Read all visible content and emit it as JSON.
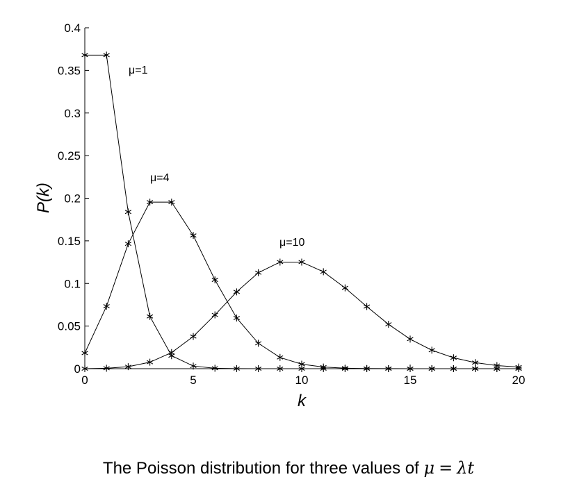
{
  "chart_data": {
    "type": "line",
    "xlabel": "k",
    "ylabel": "P(k)",
    "xlim": [
      0,
      20
    ],
    "ylim": [
      0,
      0.4
    ],
    "xticks": [
      0,
      5,
      10,
      15,
      20
    ],
    "xtick_labels": [
      "0",
      "5",
      "10",
      "15",
      "20"
    ],
    "yticks": [
      0,
      0.05,
      0.1,
      0.15,
      0.2,
      0.25,
      0.3,
      0.35,
      0.4
    ],
    "ytick_labels": [
      "0",
      "0.05",
      "0.1",
      "0.15",
      "0.2",
      "0.25",
      "0.3",
      "0.35",
      "0.4"
    ],
    "grid": false,
    "marker": "asterisk",
    "x": [
      0,
      1,
      2,
      3,
      4,
      5,
      6,
      7,
      8,
      9,
      10,
      11,
      12,
      13,
      14,
      15,
      16,
      17,
      18,
      19,
      20
    ],
    "series": [
      {
        "name": "μ=1",
        "values": [
          0.3679,
          0.3679,
          0.1839,
          0.0613,
          0.0153,
          0.0031,
          0.0005,
          0.0001,
          0,
          0,
          0,
          0,
          0,
          0,
          0,
          0,
          0,
          0,
          0,
          0,
          0
        ]
      },
      {
        "name": "μ=4",
        "values": [
          0.0183,
          0.0733,
          0.1465,
          0.1954,
          0.1954,
          0.1563,
          0.1042,
          0.0595,
          0.0298,
          0.0132,
          0.0053,
          0.0019,
          0.0006,
          0.0002,
          0.0001,
          0,
          0,
          0,
          0,
          0,
          0
        ]
      },
      {
        "name": "μ=10",
        "values": [
          0.0,
          0.0005,
          0.0023,
          0.0076,
          0.0189,
          0.0378,
          0.0631,
          0.0901,
          0.1126,
          0.1251,
          0.1251,
          0.1137,
          0.0948,
          0.0729,
          0.0521,
          0.0347,
          0.0217,
          0.0128,
          0.0071,
          0.0037,
          0.0019
        ]
      }
    ]
  },
  "caption": {
    "text": "The Poisson distribution for three values of",
    "math_lhs": "μ",
    "math_eq": "=",
    "math_rhs": "λt"
  }
}
